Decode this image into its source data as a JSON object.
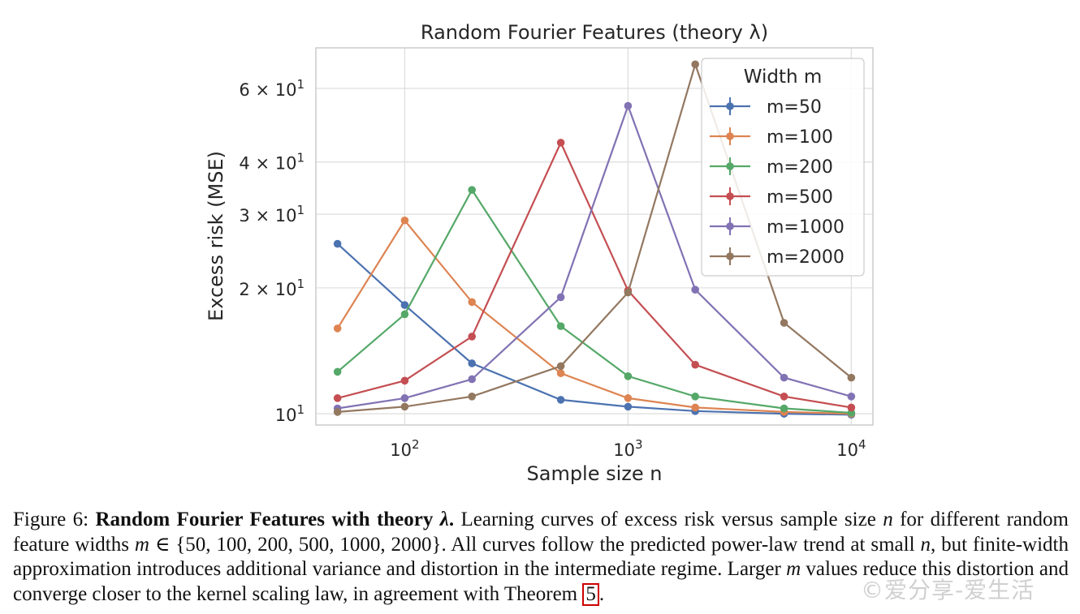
{
  "figure": {
    "chart_data": {
      "type": "line",
      "title": "Random Fourier Features (theory λ)",
      "xlabel": "Sample size n",
      "ylabel": "Excess risk (MSE)",
      "xscale": "log",
      "yscale": "log",
      "xlim": [
        40,
        12500
      ],
      "ylim": [
        9.4,
        75
      ],
      "x_ticks": [
        {
          "value": 100,
          "base": "10",
          "exp": "2"
        },
        {
          "value": 1000,
          "base": "10",
          "exp": "3"
        },
        {
          "value": 10000,
          "base": "10",
          "exp": "4"
        }
      ],
      "y_ticks": [
        {
          "value": 10,
          "mantissa": "",
          "base": "10",
          "exp": "1"
        },
        {
          "value": 20,
          "mantissa": "2 × ",
          "base": "10",
          "exp": "1"
        },
        {
          "value": 30,
          "mantissa": "3 × ",
          "base": "10",
          "exp": "1"
        },
        {
          "value": 40,
          "mantissa": "4 × ",
          "base": "10",
          "exp": "1"
        },
        {
          "value": 60,
          "mantissa": "6 × ",
          "base": "10",
          "exp": "1"
        }
      ],
      "grid": true,
      "legend_title": "Width m",
      "legend_position": "top-right",
      "x": [
        50,
        100,
        200,
        500,
        1000,
        2000,
        5000,
        10000
      ],
      "series": [
        {
          "name": "m=50",
          "color": "#4c72b0",
          "values": [
            25.5,
            18.2,
            13.2,
            10.8,
            10.4,
            10.15,
            10.0,
            9.95
          ]
        },
        {
          "name": "m=100",
          "color": "#dd8452",
          "values": [
            16.0,
            29.0,
            18.5,
            12.5,
            10.9,
            10.35,
            10.1,
            10.0
          ]
        },
        {
          "name": "m=200",
          "color": "#55a868",
          "values": [
            12.6,
            17.3,
            34.3,
            16.2,
            12.3,
            11.0,
            10.3,
            10.05
          ]
        },
        {
          "name": "m=500",
          "color": "#c44e52",
          "values": [
            10.9,
            12.0,
            15.3,
            44.5,
            19.7,
            13.1,
            11.0,
            10.35
          ]
        },
        {
          "name": "m=1000",
          "color": "#8172b3",
          "values": [
            10.3,
            10.9,
            12.1,
            19.0,
            54.5,
            19.8,
            12.2,
            11.0
          ]
        },
        {
          "name": "m=2000",
          "color": "#937860",
          "values": [
            10.1,
            10.4,
            11.0,
            13.0,
            19.5,
            68.5,
            16.5,
            12.2
          ]
        }
      ]
    }
  },
  "caption": {
    "label": "Figure 6: ",
    "bold_title": "Random Fourier Features with theory ",
    "bold_title_symbol": "λ",
    "bold_title_end": ".",
    "text_1": " Learning curves of excess risk versus sample size ",
    "n": "n",
    "text_2": " for different random feature widths ",
    "m": "m",
    "set": " ∈ {50, 100, 200, 500, 1000, 2000}",
    "text_3": ". All curves follow the predicted power-law trend at small ",
    "text_4": ", but finite-width approximation introduces additional variance and distortion in the intermediate regime. Larger ",
    "text_5": " values reduce this distortion and converge closer to the kernel scaling law, in agreement with Theorem ",
    "theorem_number": "5",
    "text_end": "."
  },
  "watermark": "©爱分享-爱生活"
}
